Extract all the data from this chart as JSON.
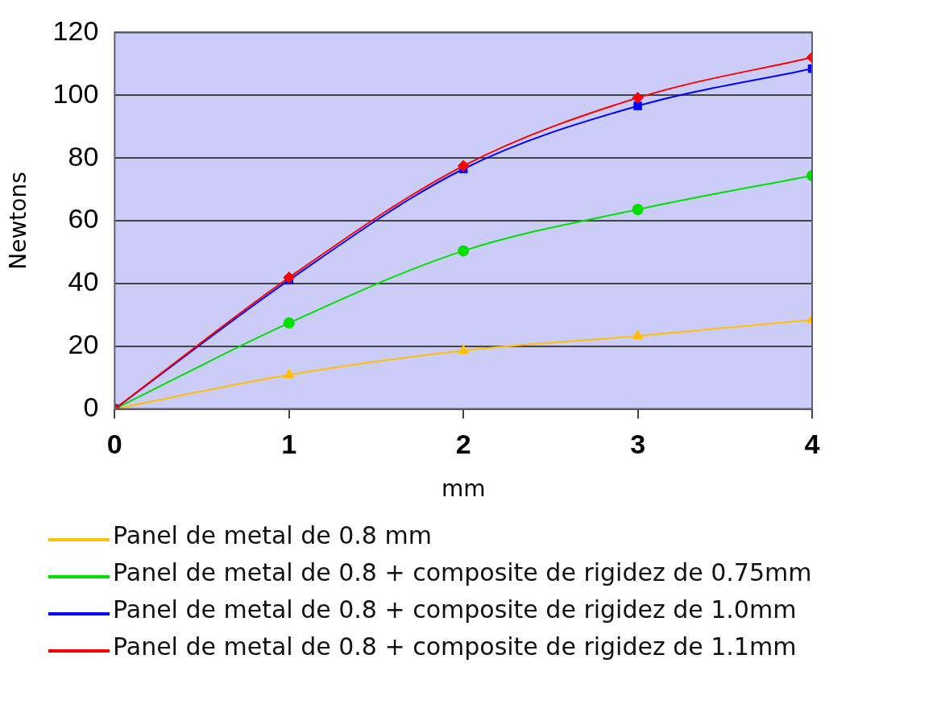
{
  "chart_data": {
    "type": "line",
    "xlabel": "mm",
    "ylabel": "Newtons",
    "x": [
      0,
      1,
      2,
      3,
      4
    ],
    "xlim": [
      0,
      4
    ],
    "xticks": [
      0,
      1,
      2,
      3,
      4
    ],
    "ylim": [
      0,
      120
    ],
    "yticks": [
      0,
      20,
      40,
      60,
      80,
      100,
      120
    ],
    "grid": "y",
    "legend": "bottom",
    "series": [
      {
        "name": "Panel de metal de 0.8 mm",
        "color": "#ffc000",
        "marker": "triangle",
        "values": [
          0,
          10.9,
          18.6,
          23.3,
          28.4
        ]
      },
      {
        "name": "Panel de metal de 0.8 + composite de rigidez de 0.75mm",
        "color": "#00e000",
        "marker": "circle",
        "values": [
          0,
          27.4,
          50.4,
          63.6,
          74.4
        ]
      },
      {
        "name": "Panel de metal de 0.8 + composite de rigidez de 1.0mm",
        "color": "#0000ff",
        "marker": "square",
        "values": [
          0,
          41.1,
          76.5,
          96.6,
          108.5
        ]
      },
      {
        "name": "Panel de metal de 0.8 + composite de rigidez de 1.1mm",
        "color": "#ff0000",
        "marker": "diamond",
        "values": [
          0,
          41.9,
          77.5,
          99.2,
          112.1
        ]
      }
    ]
  }
}
